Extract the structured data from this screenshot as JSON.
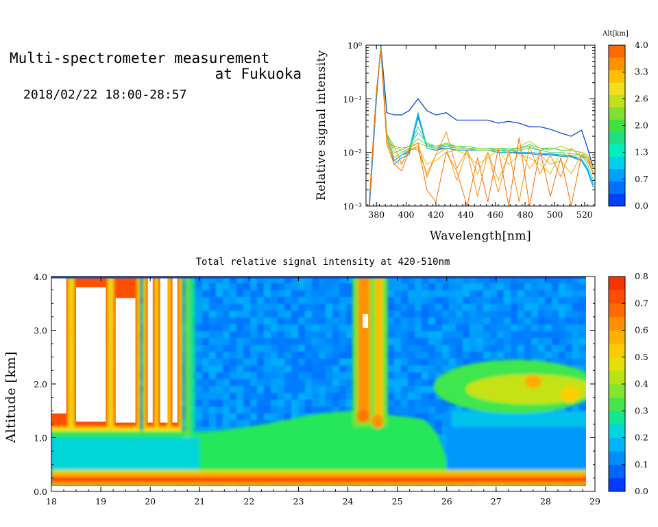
{
  "header": {
    "title_line1": "Multi-spectrometer measurement",
    "title_line2": "at Fukuoka",
    "datetime": "2018/02/22 18:00-28:57"
  },
  "chart_data": [
    {
      "type": "line",
      "xlabel": "Wavelength[nm]",
      "ylabel": "Relative signal intensity",
      "xlim": [
        373,
        527
      ],
      "ylim": [
        0.001,
        1
      ],
      "y_scale": "log",
      "x_ticks": [
        "380",
        "400",
        "420",
        "440",
        "460",
        "480",
        "500",
        "520"
      ],
      "y_ticks": [
        "10⁻³",
        "10⁻²",
        "10⁻¹",
        "10⁰"
      ],
      "colorbar": {
        "label": "Alt[km]",
        "ticks": [
          "0.0",
          "0.7",
          "1.3",
          "2.0",
          "2.6",
          "3.3",
          "4.0"
        ],
        "colors": [
          "#0040ff",
          "#0070ff",
          "#00a0ff",
          "#00d0f0",
          "#00f0c0",
          "#20e080",
          "#40e040",
          "#80e030",
          "#c0e020",
          "#f0e020",
          "#ffc000",
          "#ff9000",
          "#ff6a00"
        ]
      },
      "x": [
        375,
        380,
        383,
        387,
        392,
        397,
        402,
        408,
        414,
        420,
        427,
        434,
        441,
        448,
        455,
        462,
        469,
        476,
        483,
        490,
        497,
        504,
        511,
        518,
        522,
        526
      ],
      "series": [
        {
          "altitude_km": 0.2,
          "color": "#0b47d8",
          "values": [
            0.0007,
            0.1,
            1.0,
            0.055,
            0.05,
            0.05,
            0.06,
            0.1,
            0.06,
            0.05,
            0.055,
            0.04,
            0.04,
            0.04,
            0.04,
            0.035,
            0.038,
            0.035,
            0.03,
            0.03,
            0.027,
            0.023,
            0.02,
            0.026,
            0.012,
            0.005
          ]
        },
        {
          "altitude_km": 0.4,
          "color": "#1773f0",
          "values": [
            0.0008,
            0.12,
            0.95,
            0.02,
            0.007,
            0.009,
            0.01,
            0.045,
            0.013,
            0.012,
            0.012,
            0.011,
            0.011,
            0.011,
            0.011,
            0.011,
            0.01,
            0.01,
            0.01,
            0.0095,
            0.009,
            0.009,
            0.0085,
            0.007,
            0.005,
            0.0025
          ]
        },
        {
          "altitude_km": 0.7,
          "color": "#10a0f5",
          "values": [
            0.0008,
            0.12,
            0.95,
            0.02,
            0.006,
            0.008,
            0.009,
            0.05,
            0.012,
            0.011,
            0.012,
            0.011,
            0.011,
            0.011,
            0.011,
            0.01,
            0.01,
            0.0095,
            0.0095,
            0.009,
            0.009,
            0.0085,
            0.0082,
            0.007,
            0.0045,
            0.0022
          ]
        },
        {
          "altitude_km": 1.0,
          "color": "#18c8e8",
          "values": [
            0.0009,
            0.13,
            0.92,
            0.02,
            0.007,
            0.009,
            0.011,
            0.055,
            0.013,
            0.012,
            0.013,
            0.012,
            0.012,
            0.011,
            0.011,
            0.011,
            0.011,
            0.01,
            0.01,
            0.0095,
            0.0095,
            0.009,
            0.0088,
            0.0075,
            0.005,
            0.0025
          ]
        },
        {
          "altitude_km": 1.3,
          "color": "#18e0b0",
          "values": [
            0.0009,
            0.13,
            0.9,
            0.021,
            0.008,
            0.01,
            0.012,
            0.03,
            0.014,
            0.012,
            0.014,
            0.012,
            0.012,
            0.012,
            0.012,
            0.011,
            0.011,
            0.011,
            0.012,
            0.011,
            0.01,
            0.01,
            0.0095,
            0.009,
            0.006,
            0.003
          ]
        },
        {
          "altitude_km": 1.8,
          "color": "#3ade60",
          "values": [
            0.001,
            0.14,
            0.88,
            0.022,
            0.01,
            0.011,
            0.013,
            0.023,
            0.015,
            0.013,
            0.015,
            0.013,
            0.013,
            0.012,
            0.012,
            0.012,
            0.012,
            0.012,
            0.014,
            0.012,
            0.012,
            0.011,
            0.011,
            0.01,
            0.008,
            0.004
          ]
        },
        {
          "altitude_km": 2.2,
          "color": "#6ad030",
          "values": [
            0.001,
            0.14,
            0.85,
            0.022,
            0.013,
            0.012,
            0.013,
            0.018,
            0.014,
            0.013,
            0.014,
            0.013,
            0.012,
            0.012,
            0.012,
            0.012,
            0.011,
            0.012,
            0.013,
            0.011,
            0.012,
            0.011,
            0.011,
            0.01,
            0.009,
            0.005
          ]
        },
        {
          "altitude_km": 2.6,
          "color": "#a8d020",
          "values": [
            0.001,
            0.14,
            0.85,
            0.02,
            0.012,
            0.011,
            0.013,
            0.015,
            0.013,
            0.012,
            0.014,
            0.012,
            0.012,
            0.011,
            0.011,
            0.011,
            0.01,
            0.013,
            0.016,
            0.012,
            0.011,
            0.013,
            0.011,
            0.01,
            0.009,
            0.005
          ]
        },
        {
          "altitude_km": 3.0,
          "color": "#e0c010",
          "values": [
            0.001,
            0.14,
            0.82,
            0.018,
            0.008,
            0.01,
            0.011,
            0.012,
            0.006,
            0.007,
            0.01,
            0.011,
            0.009,
            0.006,
            0.008,
            0.011,
            0.006,
            0.009,
            0.008,
            0.006,
            0.004,
            0.01,
            0.008,
            0.01,
            0.009,
            0.005
          ]
        },
        {
          "altitude_km": 3.3,
          "color": "#f5a800",
          "values": [
            0.001,
            0.14,
            0.8,
            0.016,
            0.007,
            0.006,
            0.012,
            0.011,
            0.004,
            0.009,
            0.012,
            0.003,
            0.011,
            0.004,
            0.01,
            0.003,
            0.009,
            0.012,
            0.005,
            0.009,
            0.006,
            0.007,
            0.004,
            0.009,
            0.008,
            0.005
          ]
        },
        {
          "altitude_km": 3.7,
          "color": "#ff8a00",
          "values": [
            0.001,
            0.14,
            0.8,
            0.015,
            0.013,
            0.006,
            0.012,
            0.015,
            0.0035,
            0.009,
            0.024,
            0.005,
            0.011,
            0.0015,
            0.01,
            0.0018,
            0.011,
            0.0012,
            0.013,
            0.004,
            0.009,
            0.0035,
            0.012,
            0.008,
            0.008,
            0.004
          ]
        },
        {
          "altitude_km": 4.0,
          "color": "#ff6a00",
          "values": [
            0.001,
            0.14,
            0.78,
            0.014,
            0.006,
            0.0045,
            0.011,
            0.013,
            0.002,
            0.0012,
            0.01,
            0.0045,
            0.001,
            0.008,
            0.0012,
            0.012,
            0.001,
            0.019,
            0.001,
            0.011,
            0.0015,
            0.008,
            0.001,
            0.009,
            0.007,
            0.004
          ]
        }
      ]
    },
    {
      "type": "heatmap",
      "title": "Total relative signal intensity at 420-510nm",
      "xlabel": "",
      "ylabel": "Altitude [km]",
      "xlim": [
        18,
        29
      ],
      "ylim": [
        0,
        4
      ],
      "x_ticks": [
        "18",
        "19",
        "20",
        "21",
        "22",
        "23",
        "24",
        "25",
        "26",
        "27",
        "28",
        "29"
      ],
      "y_ticks": [
        "0.0",
        "1.0",
        "2.0",
        "3.0",
        "4.0"
      ],
      "data_extent_x": [
        18,
        28.95
      ],
      "colorbar": {
        "ticks": [
          "0.0",
          "0.1",
          "0.2",
          "0.3",
          "0.4",
          "0.5",
          "0.6",
          "0.7",
          "0.8"
        ],
        "range": [
          0,
          0.8
        ]
      },
      "regions": {
        "background_upper": 0.13,
        "green_layer_value": 0.3,
        "green_layer_top_km": 1.5,
        "evening_cloud_hours": [
          [
            18.0,
            18.3
          ],
          [
            18.5,
            19.1
          ],
          [
            19.3,
            19.7
          ],
          [
            19.95,
            20.05
          ],
          [
            20.2,
            20.35
          ],
          [
            20.45,
            20.55
          ]
        ],
        "vertical_plume_hours": [
          24.1,
          24.8
        ],
        "elevated_layer_hours": [
          25.9,
          28.95
        ],
        "elevated_layer_km": [
          1.5,
          2.5
        ],
        "surface_band_km": [
          0.1,
          0.35
        ]
      }
    }
  ]
}
